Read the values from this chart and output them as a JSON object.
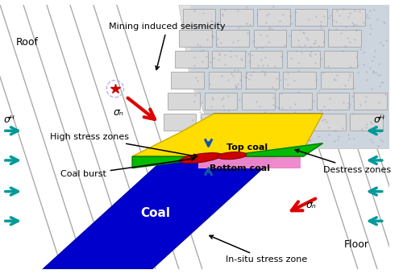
{
  "bg_color": "#ffffff",
  "coal_blue": "#0000cc",
  "top_coal_green": "#00bb00",
  "bottom_coal_yellow": "#ffdd00",
  "sigma_arrow_red": "#dd0000",
  "sigma_arrow_cyan": "#009999",
  "seismic_red": "#cc0000",
  "burst_red": "#cc0000",
  "blue_arrow": "#1155aa",
  "text_color": "#000000",
  "labels": {
    "roof": "Roof",
    "floor": "Floor",
    "coal": "Coal",
    "top_coal": "Top coal",
    "bottom_coal": "Bottom coal",
    "mining_seismicity": "Mining induced seismicity",
    "high_stress": "High stress zones",
    "coal_burst": "Coal burst",
    "destress": "Destress zones",
    "insitu": "In-situ stress zone",
    "sigma_n": "σₙ",
    "sigma_H": "σᴴ"
  }
}
